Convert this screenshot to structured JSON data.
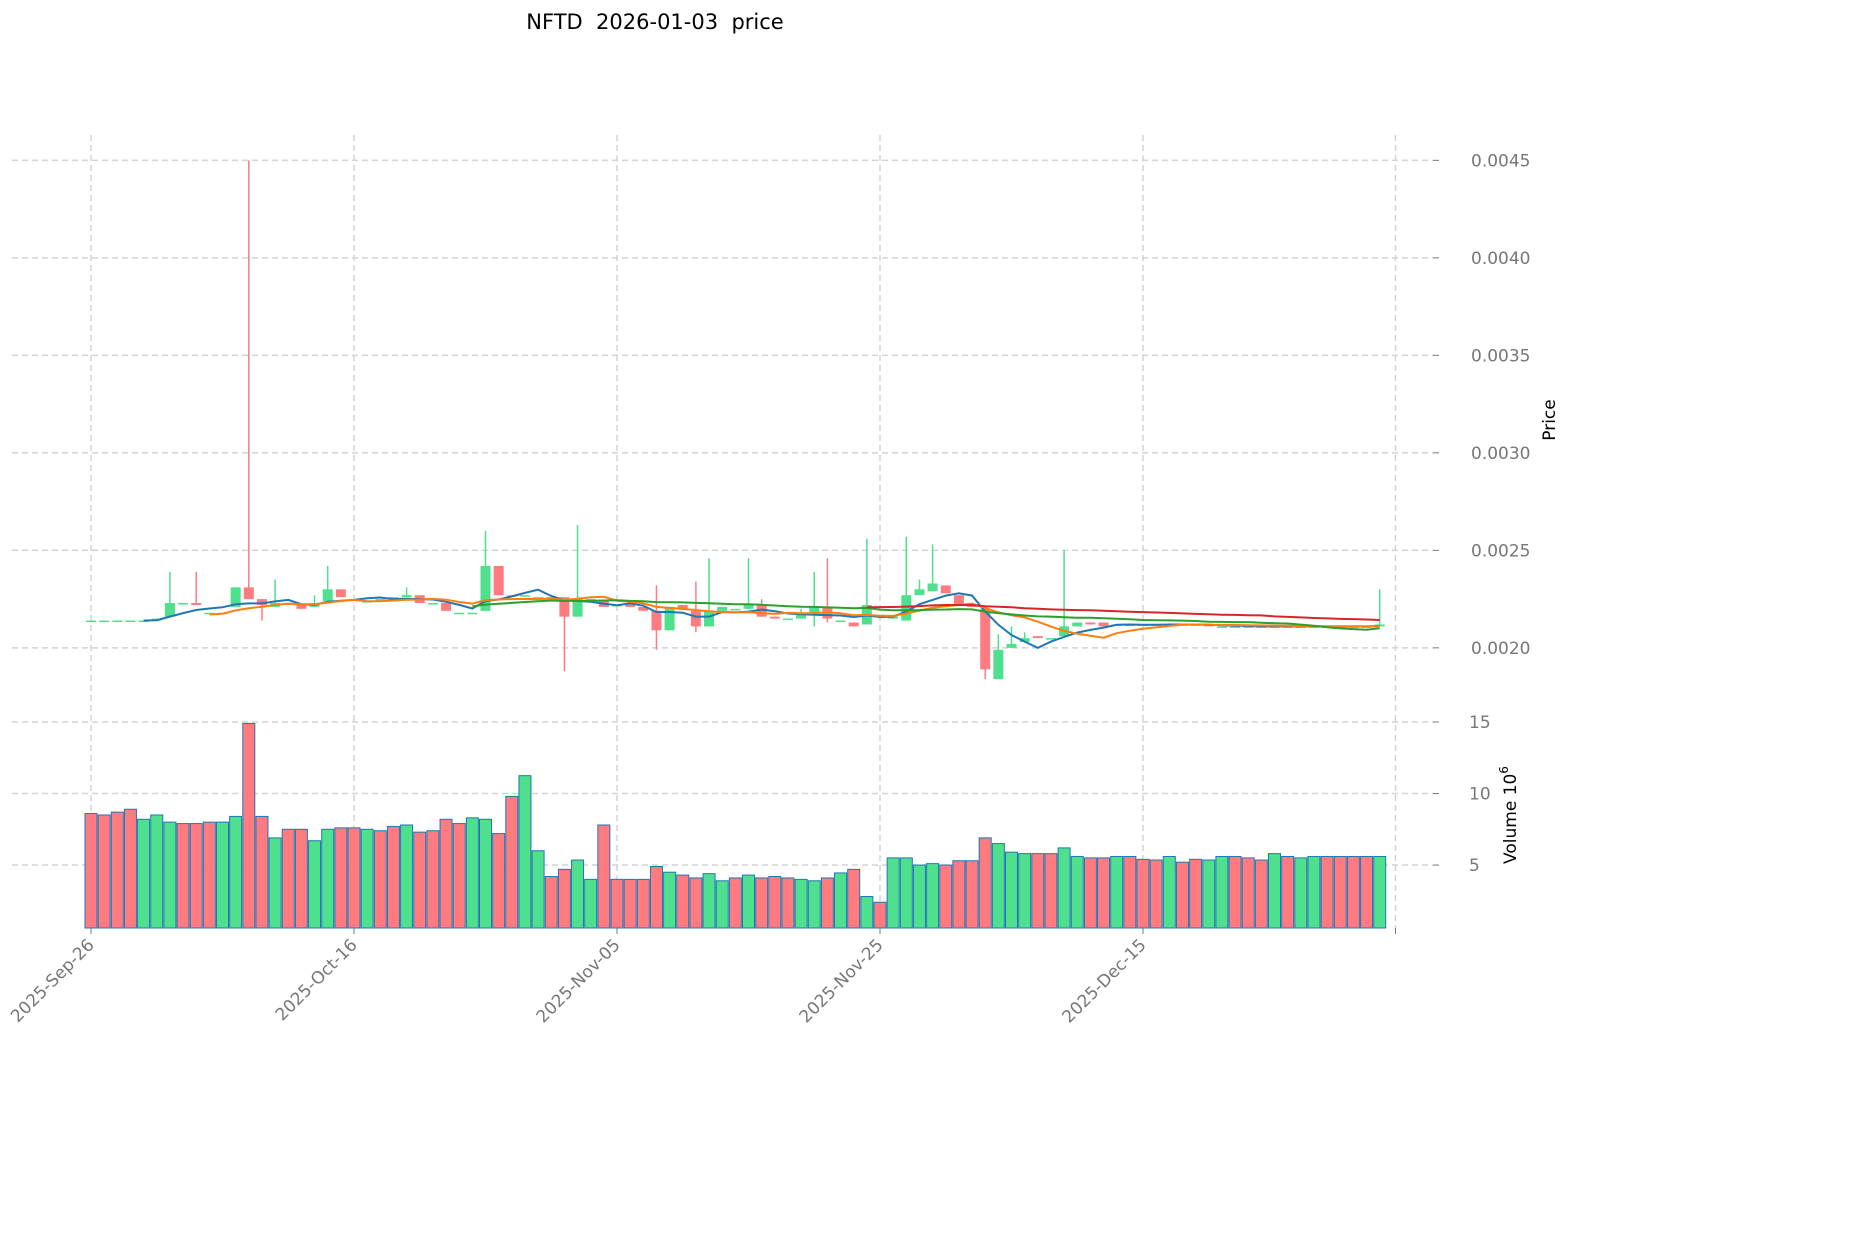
{
  "chart_data": {
    "type": "candlestick",
    "title": "NFTD  2026-01-03  price",
    "ylabel": "Price",
    "volume_label": "Volume  10",
    "volume_exponent": "6",
    "price_ylim": [
      0.00163,
      0.00463
    ],
    "volume_ylim": [
      0.6,
      15.0
    ],
    "price_ticks": [
      "0.0020",
      "0.0025",
      "0.0030",
      "0.0035",
      "0.0040",
      "0.0045"
    ],
    "volume_ticks": [
      "5",
      "10",
      "15"
    ],
    "x_ticks": [
      {
        "label": "2025-Sep-26",
        "index": 0
      },
      {
        "label": "2025-Oct-16",
        "index": 20
      },
      {
        "label": "2025-Nov-05",
        "index": 40
      },
      {
        "label": "2025-Nov-25",
        "index": 60
      },
      {
        "label": "2025-Dec-15",
        "index": 80
      }
    ],
    "grid": true,
    "colors": {
      "up": "#4ee08c",
      "down": "#ff7b80",
      "volume_edge": "#1f77b4",
      "ma": [
        "#1f77b4",
        "#ff7f0e",
        "#2ca02c",
        "#d62728"
      ]
    },
    "moving_averages": [
      5,
      10,
      30,
      60
    ],
    "ohlc": [
      [
        0.00214,
        0.00214,
        0.00214,
        0.00214
      ],
      [
        0.00214,
        0.00214,
        0.00214,
        0.00214
      ],
      [
        0.00214,
        0.00214,
        0.00214,
        0.00214
      ],
      [
        0.00214,
        0.00214,
        0.00214,
        0.00214
      ],
      [
        0.00214,
        0.00214,
        0.00214,
        0.00214
      ],
      [
        0.00214,
        0.00215,
        0.00214,
        0.00215
      ],
      [
        0.00216,
        0.00239,
        0.00216,
        0.00223
      ],
      [
        0.00223,
        0.00223,
        0.00223,
        0.00223
      ],
      [
        0.00223,
        0.00239,
        0.00222,
        0.00222
      ],
      [
        0.00218,
        0.00218,
        0.00218,
        0.00218
      ],
      [
        0.00218,
        0.00218,
        0.00218,
        0.00218
      ],
      [
        0.00221,
        0.00231,
        0.00221,
        0.00231
      ],
      [
        0.00231,
        0.0045,
        0.00225,
        0.00225
      ],
      [
        0.00225,
        0.00225,
        0.00214,
        0.00222
      ],
      [
        0.00221,
        0.00235,
        0.00221,
        0.00223
      ],
      [
        0.00223,
        0.00223,
        0.00222,
        0.00222
      ],
      [
        0.00222,
        0.00222,
        0.0022,
        0.0022
      ],
      [
        0.00221,
        0.00227,
        0.00221,
        0.00223
      ],
      [
        0.00224,
        0.00242,
        0.00224,
        0.0023
      ],
      [
        0.0023,
        0.0023,
        0.00226,
        0.00226
      ],
      [
        0.00225,
        0.00225,
        0.00224,
        0.00224
      ],
      [
        0.00224,
        0.00224,
        0.00224,
        0.00224
      ],
      [
        0.00225,
        0.00225,
        0.00225,
        0.00225
      ],
      [
        0.00226,
        0.00226,
        0.00226,
        0.00226
      ],
      [
        0.00226,
        0.00231,
        0.00226,
        0.00227
      ],
      [
        0.00227,
        0.00227,
        0.00223,
        0.00223
      ],
      [
        0.00223,
        0.00223,
        0.00223,
        0.00223
      ],
      [
        0.00223,
        0.00223,
        0.00219,
        0.00219
      ],
      [
        0.00218,
        0.00218,
        0.00218,
        0.00218
      ],
      [
        0.00218,
        0.00218,
        0.00218,
        0.00218
      ],
      [
        0.00219,
        0.0026,
        0.00219,
        0.00242
      ],
      [
        0.00242,
        0.00242,
        0.00227,
        0.00227
      ],
      [
        0.00227,
        0.00227,
        0.00227,
        0.00227
      ],
      [
        0.00227,
        0.00227,
        0.00227,
        0.00227
      ],
      [
        0.00226,
        0.00226,
        0.00226,
        0.00226
      ],
      [
        0.00226,
        0.00226,
        0.00226,
        0.00226
      ],
      [
        0.00226,
        0.00226,
        0.00188,
        0.00216
      ],
      [
        0.00216,
        0.00263,
        0.00216,
        0.00225
      ],
      [
        0.00225,
        0.00225,
        0.00225,
        0.00225
      ],
      [
        0.00224,
        0.00224,
        0.00221,
        0.00221
      ],
      [
        0.00222,
        0.00222,
        0.00222,
        0.00222
      ],
      [
        0.00223,
        0.00223,
        0.00221,
        0.00221
      ],
      [
        0.00221,
        0.00221,
        0.00219,
        0.00219
      ],
      [
        0.00219,
        0.00232,
        0.00199,
        0.00209
      ],
      [
        0.00209,
        0.00221,
        0.00209,
        0.00221
      ],
      [
        0.00222,
        0.00222,
        0.0022,
        0.0022
      ],
      [
        0.00219,
        0.00234,
        0.00208,
        0.00211
      ],
      [
        0.00211,
        0.00246,
        0.00211,
        0.00219
      ],
      [
        0.00219,
        0.00221,
        0.00219,
        0.00221
      ],
      [
        0.0022,
        0.0022,
        0.0022,
        0.0022
      ],
      [
        0.0022,
        0.00246,
        0.0022,
        0.00222
      ],
      [
        0.00222,
        0.00225,
        0.00216,
        0.00216
      ],
      [
        0.00216,
        0.00216,
        0.00215,
        0.00215
      ],
      [
        0.00215,
        0.00215,
        0.00215,
        0.00215
      ],
      [
        0.00215,
        0.0022,
        0.00215,
        0.00218
      ],
      [
        0.00217,
        0.00239,
        0.00211,
        0.00221
      ],
      [
        0.00221,
        0.00246,
        0.00213,
        0.00215
      ],
      [
        0.00214,
        0.00214,
        0.00214,
        0.00214
      ],
      [
        0.00213,
        0.00213,
        0.00211,
        0.00211
      ],
      [
        0.00212,
        0.00256,
        0.00212,
        0.00222
      ],
      [
        0.00217,
        0.00217,
        0.00217,
        0.00217
      ],
      [
        0.00215,
        0.00216,
        0.00215,
        0.00216
      ],
      [
        0.00214,
        0.00257,
        0.00214,
        0.00227
      ],
      [
        0.00227,
        0.00235,
        0.00227,
        0.0023
      ],
      [
        0.00229,
        0.00253,
        0.00229,
        0.00233
      ],
      [
        0.00232,
        0.00232,
        0.00228,
        0.00228
      ],
      [
        0.00227,
        0.00227,
        0.00222,
        0.00222
      ],
      [
        0.00222,
        0.00222,
        0.00221,
        0.00221
      ],
      [
        0.0022,
        0.0022,
        0.00184,
        0.00189
      ],
      [
        0.00184,
        0.00207,
        0.00184,
        0.00199
      ],
      [
        0.002,
        0.00211,
        0.002,
        0.00202
      ],
      [
        0.00203,
        0.00208,
        0.00203,
        0.00205
      ],
      [
        0.00206,
        0.00206,
        0.00205,
        0.00205
      ],
      [
        0.00205,
        0.00205,
        0.00205,
        0.00205
      ],
      [
        0.00206,
        0.0025,
        0.00206,
        0.00211
      ],
      [
        0.00211,
        0.00213,
        0.00211,
        0.00213
      ],
      [
        0.00213,
        0.00213,
        0.00212,
        0.00212
      ],
      [
        0.00213,
        0.00213,
        0.00211,
        0.00211
      ],
      [
        0.00212,
        0.00212,
        0.00212,
        0.00212
      ],
      [
        0.00212,
        0.00212,
        0.00212,
        0.00212
      ],
      [
        0.00212,
        0.00212,
        0.00212,
        0.00212
      ],
      [
        0.00212,
        0.00212,
        0.00212,
        0.00212
      ],
      [
        0.00212,
        0.00212,
        0.00212,
        0.00212
      ],
      [
        0.00212,
        0.00212,
        0.00212,
        0.00212
      ],
      [
        0.00212,
        0.00212,
        0.00212,
        0.00212
      ],
      [
        0.00212,
        0.00212,
        0.00211,
        0.00211
      ],
      [
        0.00211,
        0.00211,
        0.00211,
        0.00211
      ],
      [
        0.00211,
        0.00211,
        0.00211,
        0.00211
      ],
      [
        0.00211,
        0.00211,
        0.00211,
        0.00211
      ],
      [
        0.00211,
        0.00211,
        0.00211,
        0.00211
      ],
      [
        0.00211,
        0.00211,
        0.00211,
        0.00211
      ],
      [
        0.00211,
        0.00211,
        0.00211,
        0.00211
      ],
      [
        0.00211,
        0.00211,
        0.00211,
        0.00211
      ],
      [
        0.00211,
        0.00211,
        0.00211,
        0.00211
      ],
      [
        0.00211,
        0.00211,
        0.00211,
        0.00211
      ],
      [
        0.00211,
        0.00211,
        0.00211,
        0.00211
      ],
      [
        0.00211,
        0.00211,
        0.00211,
        0.00211
      ],
      [
        0.00211,
        0.00211,
        0.00211,
        0.00211
      ],
      [
        0.00211,
        0.0023,
        0.00211,
        0.00212
      ]
    ],
    "volume": [
      8.6,
      8.5,
      8.7,
      8.9,
      8.2,
      8.5,
      8.0,
      7.9,
      7.9,
      8.0,
      8.0,
      8.4,
      14.9,
      8.4,
      6.9,
      7.5,
      7.5,
      6.7,
      7.5,
      7.6,
      7.6,
      7.5,
      7.4,
      7.7,
      7.8,
      7.3,
      7.4,
      8.2,
      7.9,
      8.3,
      8.2,
      7.2,
      9.8,
      11.25,
      6.0,
      4.2,
      4.7,
      5.35,
      4.0,
      7.8,
      4.0,
      4.0,
      4.0,
      4.9,
      4.5,
      4.3,
      4.1,
      4.4,
      3.9,
      4.1,
      4.3,
      4.1,
      4.2,
      4.1,
      4.0,
      3.9,
      4.1,
      4.45,
      4.7,
      2.8,
      2.4,
      5.5,
      5.5,
      5.0,
      5.1,
      5.0,
      5.3,
      5.3,
      6.9,
      6.5,
      5.9,
      5.8,
      5.8,
      5.8,
      6.2,
      5.6,
      5.5,
      5.5,
      5.6,
      5.6,
      5.4,
      5.35,
      5.6,
      5.2,
      5.4,
      5.35,
      5.6,
      5.6,
      5.5,
      5.35,
      5.8,
      5.6,
      5.5,
      5.6,
      5.6,
      5.6,
      5.6,
      5.6,
      5.6
    ],
    "volume_up": [
      0,
      0,
      0,
      0,
      1,
      1,
      1,
      0,
      0,
      0,
      1,
      1,
      0,
      0,
      1,
      0,
      0,
      1,
      1,
      0,
      0,
      1,
      0,
      0,
      1,
      0,
      0,
      0,
      0,
      1,
      1,
      0,
      0,
      1,
      1,
      0,
      0,
      1,
      1,
      0,
      0,
      0,
      0,
      0,
      1,
      0,
      0,
      1,
      1,
      0,
      1,
      0,
      0,
      0,
      1,
      1,
      0,
      1,
      0,
      1,
      0,
      1,
      1,
      1,
      1,
      0,
      0,
      0,
      0,
      1,
      1,
      1,
      0,
      0,
      1,
      1,
      0,
      0,
      1,
      0,
      0,
      0,
      1,
      0,
      0,
      1,
      1,
      0,
      0,
      0,
      1,
      0,
      1,
      1,
      0,
      0,
      0,
      0,
      1
    ]
  }
}
